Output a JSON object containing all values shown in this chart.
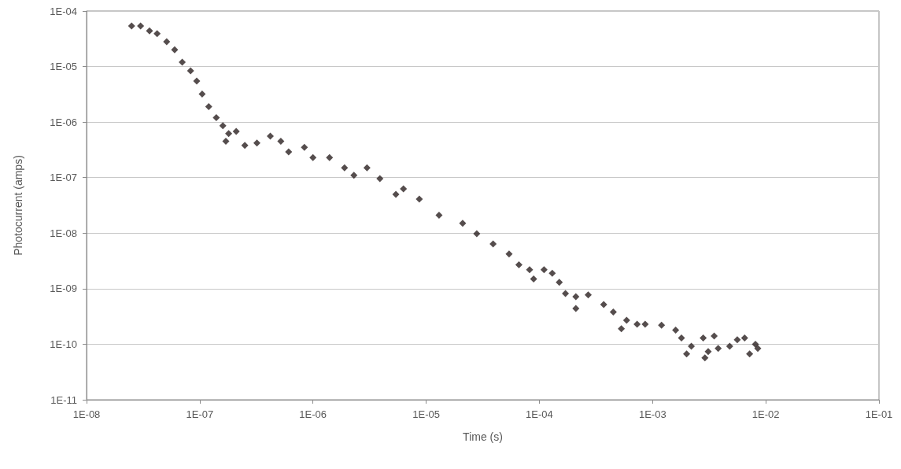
{
  "chart_data": {
    "type": "scatter",
    "xlabel": "Time (s)",
    "ylabel": "Photocurrent (amps)",
    "log": "xy",
    "grid": "y",
    "marker": "diamond",
    "xlim": [
      1e-08,
      0.1
    ],
    "ylim": [
      1e-11,
      0.0001
    ],
    "xticks": [
      {
        "value": 1e-08,
        "label": "1E-08"
      },
      {
        "value": 1e-07,
        "label": "1E-07"
      },
      {
        "value": 1e-06,
        "label": "1E-06"
      },
      {
        "value": 1e-05,
        "label": "1E-05"
      },
      {
        "value": 0.0001,
        "label": "1E-04"
      },
      {
        "value": 0.001,
        "label": "1E-03"
      },
      {
        "value": 0.01,
        "label": "1E-02"
      },
      {
        "value": 0.1,
        "label": "1E-01"
      }
    ],
    "yticks": [
      {
        "value": 1e-11,
        "label": "1E-11"
      },
      {
        "value": 1e-10,
        "label": "1E-10"
      },
      {
        "value": 1e-09,
        "label": "1E-09"
      },
      {
        "value": 1e-08,
        "label": "1E-08"
      },
      {
        "value": 1e-07,
        "label": "1E-07"
      },
      {
        "value": 1e-06,
        "label": "1E-06"
      },
      {
        "value": 1e-05,
        "label": "1E-05"
      },
      {
        "value": 0.0001,
        "label": "1E-04"
      }
    ],
    "series": [
      {
        "color": "#2b2020",
        "x": [
          2.5e-08,
          3e-08,
          3.6e-08,
          4.2e-08,
          5.1e-08,
          6e-08,
          7e-08,
          8.3e-08,
          9.4e-08,
          1.05e-07,
          1.2e-07,
          1.4e-07,
          1.6e-07,
          1.8e-07,
          1.7e-07,
          2.1e-07,
          2.5e-07,
          3.2e-07,
          4.2e-07,
          5.2e-07,
          6.1e-07,
          8.4e-07,
          1e-06,
          1.4e-06,
          1.9e-06,
          2.3e-06,
          3e-06,
          3.9e-06,
          5.4e-06,
          6.3e-06,
          8.7e-06,
          1.3e-05,
          2.1e-05,
          2.8e-05,
          3.9e-05,
          5.4e-05,
          6.6e-05,
          8.2e-05,
          8.9e-05,
          0.00011,
          0.00013,
          0.00015,
          0.00017,
          0.00021,
          0.00021,
          0.00027,
          0.00037,
          0.00045,
          0.00053,
          0.00059,
          0.00073,
          0.00086,
          0.0012,
          0.0016,
          0.0018,
          0.002,
          0.0022,
          0.0028,
          0.0029,
          0.0031,
          0.0035,
          0.0038,
          0.0048,
          0.0056,
          0.0065,
          0.0072,
          0.0081,
          0.0085
        ],
        "values": [
          5.4e-05,
          5.4e-05,
          4.4e-05,
          3.9e-05,
          2.8e-05,
          2e-05,
          1.2e-05,
          8.4e-06,
          5.5e-06,
          3.2e-06,
          1.9e-06,
          1.2e-06,
          8.6e-07,
          6.2e-07,
          4.5e-07,
          6.8e-07,
          3.8e-07,
          4.2e-07,
          5.6e-07,
          4.5e-07,
          2.9e-07,
          3.5e-07,
          2.3e-07,
          2.3e-07,
          1.5e-07,
          1.1e-07,
          1.5e-07,
          9.6e-08,
          5e-08,
          6.3e-08,
          4.1e-08,
          2.1e-08,
          1.5e-08,
          9.8e-09,
          6.4e-09,
          4.2e-09,
          2.7e-09,
          2.2e-09,
          1.5e-09,
          2.2e-09,
          1.9e-09,
          1.3e-09,
          8.2e-10,
          7.2e-10,
          4.4e-10,
          7.7e-10,
          5.2e-10,
          3.8e-10,
          1.9e-10,
          2.7e-10,
          2.3e-10,
          2.3e-10,
          2.2e-10,
          1.8e-10,
          1.3e-10,
          6.7e-11,
          9.2e-11,
          1.3e-10,
          5.7e-11,
          7.4e-11,
          1.4e-10,
          8.4e-11,
          9.2e-11,
          1.2e-10,
          1.3e-10,
          6.7e-11,
          1e-10,
          8.4e-11
        ]
      }
    ]
  }
}
